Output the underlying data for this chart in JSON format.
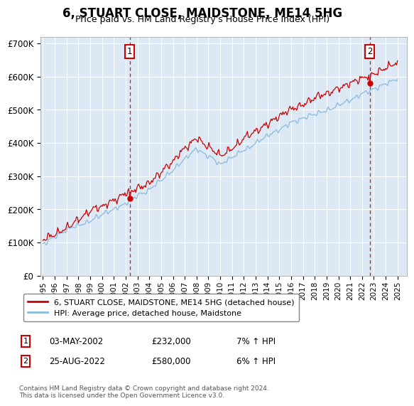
{
  "title": "6, STUART CLOSE, MAIDSTONE, ME14 5HG",
  "subtitle": "Price paid vs. HM Land Registry's House Price Index (HPI)",
  "bg_color": "#dce9f5",
  "line1_color": "#cc0000",
  "line2_color": "#88bbdd",
  "ylim": [
    0,
    720000
  ],
  "yticks": [
    0,
    100000,
    200000,
    300000,
    400000,
    500000,
    600000,
    700000
  ],
  "ytick_labels": [
    "£0",
    "£100K",
    "£200K",
    "£300K",
    "£400K",
    "£500K",
    "£600K",
    "£700K"
  ],
  "sale1_year": 2002.35,
  "sale1_price": 232000,
  "sale1_label": "1",
  "sale2_year": 2022.65,
  "sale2_price": 580000,
  "sale2_label": "2",
  "legend_line1": "6, STUART CLOSE, MAIDSTONE, ME14 5HG (detached house)",
  "legend_line2": "HPI: Average price, detached house, Maidstone",
  "annotation1_date": "03-MAY-2002",
  "annotation1_price": "£232,000",
  "annotation1_hpi": "7% ↑ HPI",
  "annotation2_date": "25-AUG-2022",
  "annotation2_price": "£580,000",
  "annotation2_hpi": "6% ↑ HPI",
  "footnote": "Contains HM Land Registry data © Crown copyright and database right 2024.\nThis data is licensed under the Open Government Licence v3.0."
}
